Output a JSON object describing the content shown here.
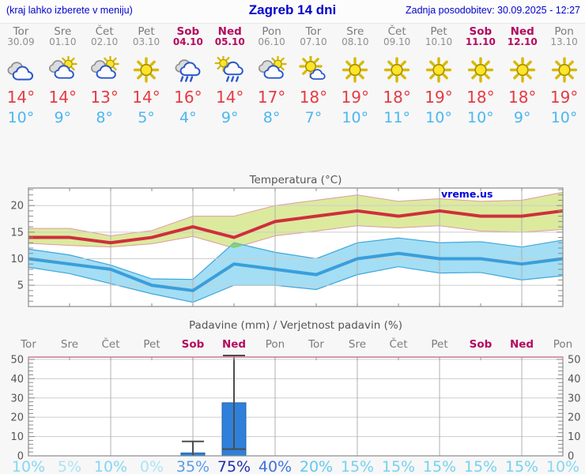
{
  "header": {
    "hint": "(kraj lahko izberete v meniju)",
    "title": "Zagreb 14 dni",
    "updated": "Zadnja posodobitev: 30.09.2025 - 12:27"
  },
  "watermark": "vreme.us",
  "colors": {
    "header_blue": "#0202cc",
    "day_gray": "#7b7b7b",
    "weekend": "#b30b5e",
    "high_red": "#e63a42",
    "low_blue": "#4cb7ef",
    "chart_text": "#555555",
    "grid_h": "#cdcdcd",
    "grid_v": "#b0b0b0",
    "border": "#8a8a8a",
    "band_green": "#dcea9e",
    "band_green_edge": "#e099a1",
    "band_blue": "#a3def4",
    "band_blue_edge": "#3ea6dd",
    "band_overlap": "#8acd7a",
    "line_max": "#ce2f3d",
    "line_min": "#3a9edb",
    "precip_top": "#cc7f9b",
    "bar_blue": "#2e80da",
    "bar_edge": "#2263a8",
    "whisker": "#4d4d4d"
  },
  "days": [
    {
      "name": "Tor",
      "date": "30.09",
      "weekend": false,
      "icon": "cloudy",
      "high": "14°",
      "low": "10°",
      "prob": "10%",
      "prob_color": "#86d7f0"
    },
    {
      "name": "Sre",
      "date": "01.10",
      "weekend": false,
      "icon": "partly-sunny",
      "high": "14°",
      "low": "9°",
      "prob": "5%",
      "prob_color": "#abe4f6"
    },
    {
      "name": "Čet",
      "date": "02.10",
      "weekend": false,
      "icon": "partly-sunny",
      "high": "13°",
      "low": "8°",
      "prob": "10%",
      "prob_color": "#86d7f0"
    },
    {
      "name": "Pet",
      "date": "03.10",
      "weekend": false,
      "icon": "sunny",
      "high": "14°",
      "low": "5°",
      "prob": "0%",
      "prob_color": "#abe4f6"
    },
    {
      "name": "Sob",
      "date": "04.10",
      "weekend": true,
      "icon": "rain",
      "high": "16°",
      "low": "4°",
      "prob": "35%",
      "prob_color": "#5a9ce9"
    },
    {
      "name": "Ned",
      "date": "05.10",
      "weekend": true,
      "icon": "sun-rain",
      "high": "14°",
      "low": "9°",
      "prob": "75%",
      "prob_color": "#1f2eb0"
    },
    {
      "name": "Pon",
      "date": "06.10",
      "weekend": false,
      "icon": "partly-sunny",
      "high": "17°",
      "low": "8°",
      "prob": "40%",
      "prob_color": "#3f72de"
    },
    {
      "name": "Tor",
      "date": "07.10",
      "weekend": false,
      "icon": "mostly-sunny",
      "high": "18°",
      "low": "7°",
      "prob": "20%",
      "prob_color": "#61c9ee"
    },
    {
      "name": "Sre",
      "date": "08.10",
      "weekend": false,
      "icon": "sunny",
      "high": "19°",
      "low": "10°",
      "prob": "15%",
      "prob_color": "#74d2f0"
    },
    {
      "name": "Čet",
      "date": "09.10",
      "weekend": false,
      "icon": "sunny",
      "high": "18°",
      "low": "11°",
      "prob": "15%",
      "prob_color": "#74d2f0"
    },
    {
      "name": "Pet",
      "date": "10.10",
      "weekend": false,
      "icon": "sunny",
      "high": "19°",
      "low": "10°",
      "prob": "15%",
      "prob_color": "#74d2f0"
    },
    {
      "name": "Sob",
      "date": "11.10",
      "weekend": true,
      "icon": "sunny",
      "high": "18°",
      "low": "10°",
      "prob": "15%",
      "prob_color": "#74d2f0"
    },
    {
      "name": "Ned",
      "date": "12.10",
      "weekend": true,
      "icon": "sunny",
      "high": "18°",
      "low": "9°",
      "prob": "15%",
      "prob_color": "#74d2f0"
    },
    {
      "name": "Pon",
      "date": "13.10",
      "weekend": false,
      "icon": "sunny",
      "high": "19°",
      "low": "10°",
      "prob": "10%",
      "prob_color": "#86d7f0"
    }
  ],
  "chart_data": [
    {
      "type": "area",
      "title": "Temperatura (°C)",
      "x_days": [
        "Tor",
        "Sre",
        "Čet",
        "Pet",
        "Sob",
        "Ned",
        "Pon",
        "Tor",
        "Sre",
        "Čet",
        "Pet",
        "Sob",
        "Ned",
        "Pon"
      ],
      "ylim": [
        1,
        23.3
      ],
      "yticks": [
        5,
        10,
        15,
        20
      ],
      "grid": true,
      "legend": "none",
      "series": [
        {
          "name": "max",
          "values": [
            14,
            14,
            13,
            14,
            16,
            14,
            17,
            18,
            19,
            18,
            19,
            18,
            18,
            19
          ]
        },
        {
          "name": "max_upper",
          "values": [
            15.7,
            15.7,
            14.3,
            15.3,
            18,
            18,
            20,
            21,
            22,
            20.8,
            21.3,
            20.8,
            21,
            22.5
          ]
        },
        {
          "name": "max_lower",
          "values": [
            12.9,
            12.5,
            12.2,
            12.8,
            14.2,
            12,
            14.3,
            15.2,
            16.2,
            15.8,
            16.2,
            15.2,
            15,
            15.5
          ]
        },
        {
          "name": "min",
          "values": [
            10,
            9,
            8,
            5,
            4,
            9,
            8,
            7,
            10,
            11,
            10,
            10,
            9,
            10
          ]
        },
        {
          "name": "min_upper",
          "values": [
            11.8,
            10.7,
            8.8,
            6.2,
            6.1,
            13,
            11.2,
            10,
            13,
            13.9,
            13,
            13.2,
            12.2,
            13.5
          ]
        },
        {
          "name": "min_lower",
          "values": [
            8.4,
            7.2,
            5.3,
            3.4,
            1.8,
            5,
            5,
            4.2,
            7,
            8.5,
            7.3,
            7.4,
            6,
            6.8
          ]
        }
      ]
    },
    {
      "type": "bar",
      "title": "Padavine (mm) / Verjetnost padavin (%)",
      "categories": [
        "Tor",
        "Sre",
        "Čet",
        "Pet",
        "Sob",
        "Ned",
        "Pon",
        "Tor",
        "Sre",
        "Čet",
        "Pet",
        "Sob",
        "Ned",
        "Pon"
      ],
      "values": [
        0,
        0,
        0,
        0,
        1.5,
        27.5,
        0,
        0,
        0,
        0,
        0,
        0,
        0,
        0
      ],
      "whisker_low": [
        0,
        0,
        0,
        0,
        0,
        3.5,
        0,
        0,
        0,
        0,
        0,
        0,
        0,
        0
      ],
      "whisker_high": [
        0,
        0,
        0,
        0,
        7.5,
        52,
        0,
        0,
        0,
        0,
        0,
        0,
        0,
        0
      ],
      "probabilities": [
        "10%",
        "5%",
        "10%",
        "0%",
        "35%",
        "75%",
        "40%",
        "20%",
        "15%",
        "15%",
        "15%",
        "15%",
        "15%",
        "10%"
      ],
      "ylim": [
        0,
        51.2
      ],
      "yticks": [
        0,
        10,
        20,
        30,
        40,
        50
      ],
      "grid": true
    }
  ]
}
